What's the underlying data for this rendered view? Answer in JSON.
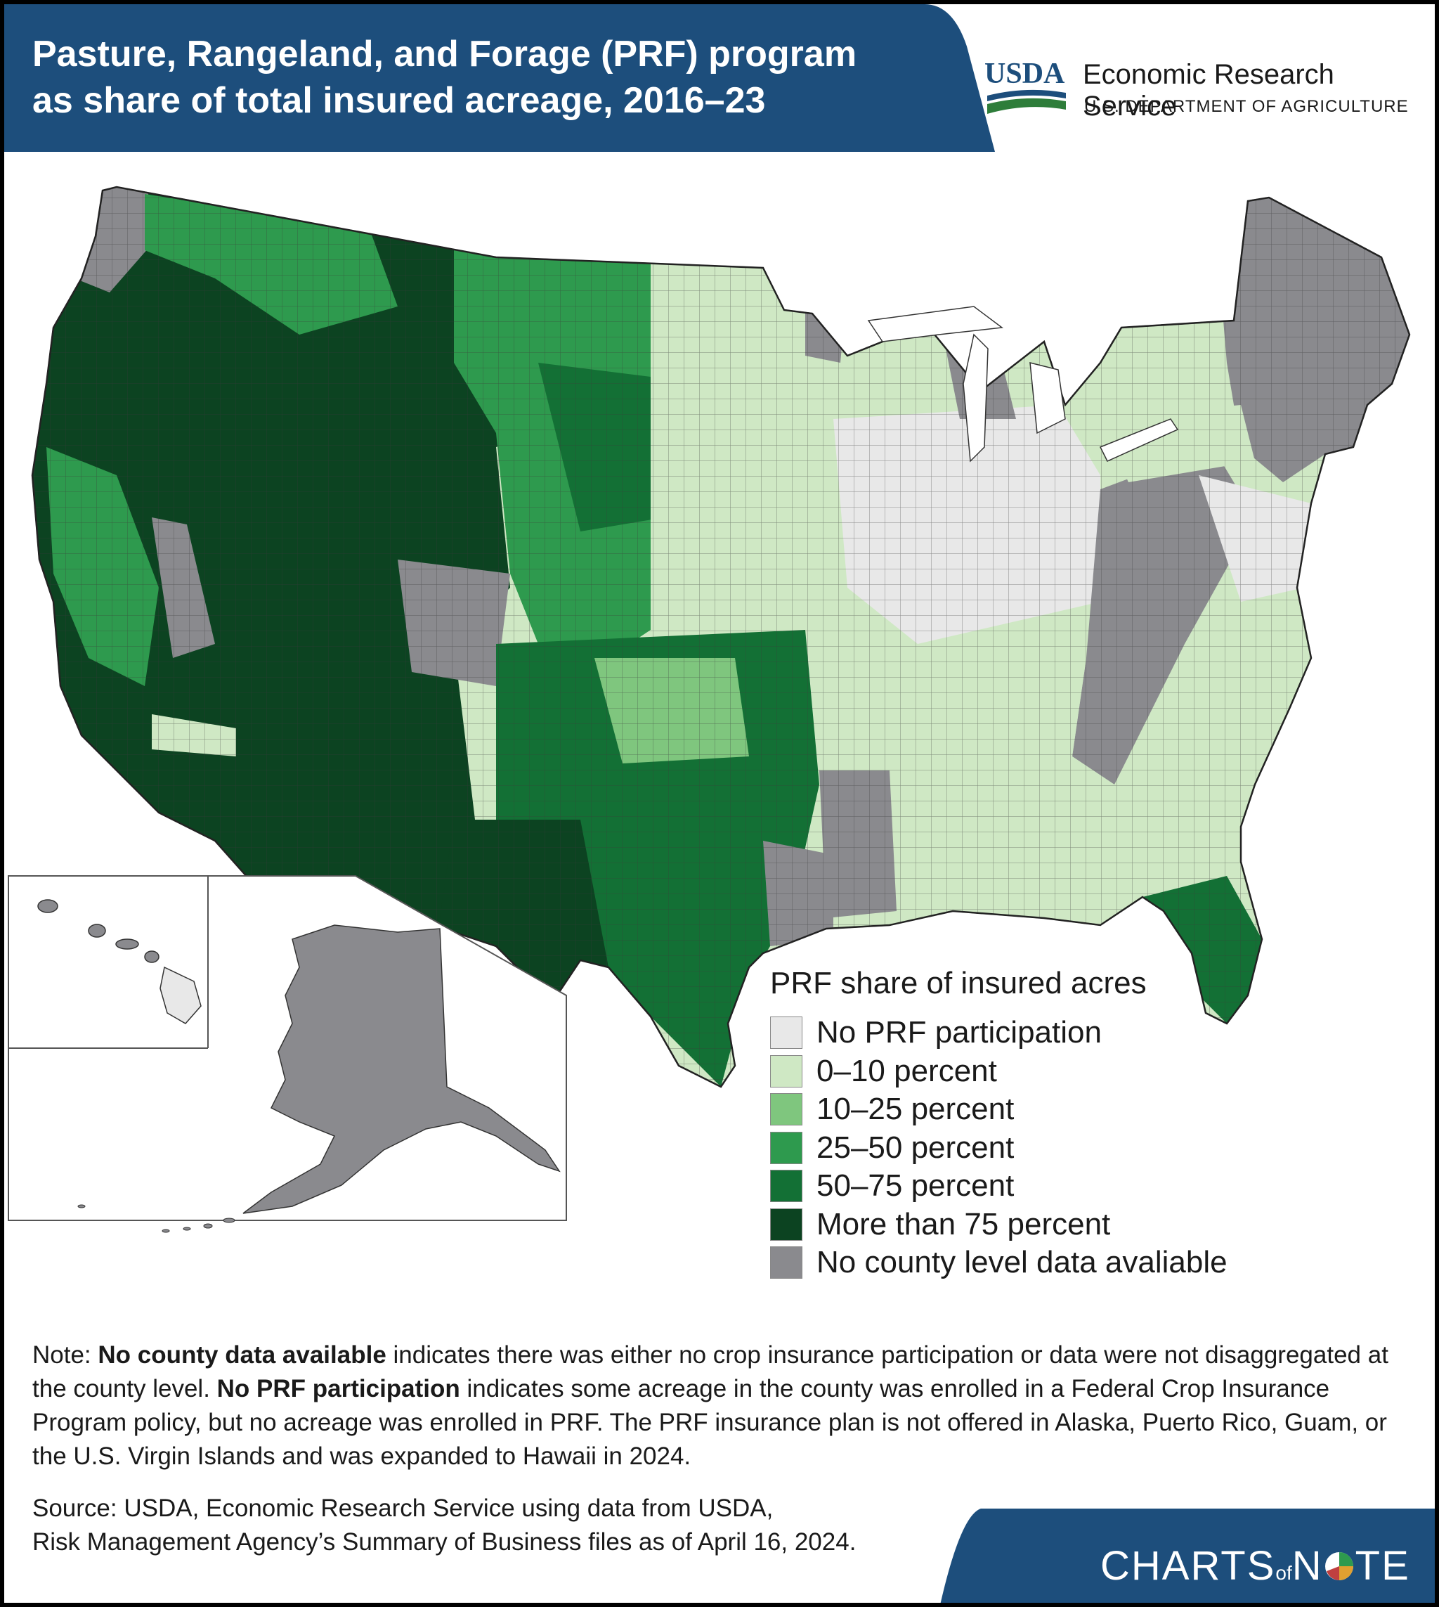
{
  "header": {
    "title_line1": "Pasture, Rangeland, and Forage (PRF) program",
    "title_line2": "as share of total insured acreage, 2016–23",
    "band_color": "#1d4e7c"
  },
  "logo": {
    "usda_text": "USDA",
    "agency_name": "Economic Research Service",
    "department": "U.S. DEPARTMENT OF AGRICULTURE"
  },
  "legend": {
    "title": "PRF share of insured acres",
    "items": [
      {
        "label": "No PRF participation",
        "color": "#e8e8e8"
      },
      {
        "label": "0–10 percent",
        "color": "#cfe8c4"
      },
      {
        "label": "10–25 percent",
        "color": "#7fc67e"
      },
      {
        "label": "25–50 percent",
        "color": "#2e9a4e"
      },
      {
        "label": "50–75 percent",
        "color": "#137035"
      },
      {
        "label": "More than 75 percent",
        "color": "#0c4321"
      },
      {
        "label": "No county level data avaliable",
        "color": "#8a8a8e"
      }
    ]
  },
  "map": {
    "regions": [
      {
        "name": "west-region",
        "category": "More than 75 percent"
      },
      {
        "name": "northern-plains-region",
        "category": "25–50 percent"
      },
      {
        "name": "southern-plains-region",
        "category": "50–75 percent"
      },
      {
        "name": "midwest-region",
        "category": "0–10 percent"
      },
      {
        "name": "great-lakes-region",
        "category": "No PRF participation"
      },
      {
        "name": "appalachia-region",
        "category": "No county level data avaliable"
      },
      {
        "name": "southeast-region",
        "category": "0–10 percent"
      },
      {
        "name": "northeast-region",
        "category": "No county level data avaliable"
      },
      {
        "name": "florida-region",
        "category": "50–75 percent"
      },
      {
        "name": "alaska",
        "category": "No county level data avaliable"
      },
      {
        "name": "hawaii",
        "category": "No county level data avaliable"
      }
    ]
  },
  "note": {
    "prefix": "Note: ",
    "bold1": "No county data available",
    "text1": " indicates there was either no crop insurance participation or data were not disaggregated at the county level. ",
    "bold2": "No PRF participation",
    "text2": " indicates some acreage in the county was enrolled in a Federal Crop Insurance Program policy, but no acreage was enrolled in PRF. The PRF insurance plan is not offered in Alaska, Puerto Rico, Guam, or the U.S. Virgin Islands and was expanded to Hawaii in 2024."
  },
  "source": {
    "line1": "Source: USDA, Economic Research Service using data from USDA,",
    "line2": "Risk Management Agency’s Summary of Business files as of April 16, 2024."
  },
  "footer": {
    "brand_part1": "CHARTS",
    "brand_of": "of",
    "brand_part2": "N",
    "brand_part3": "TE"
  }
}
